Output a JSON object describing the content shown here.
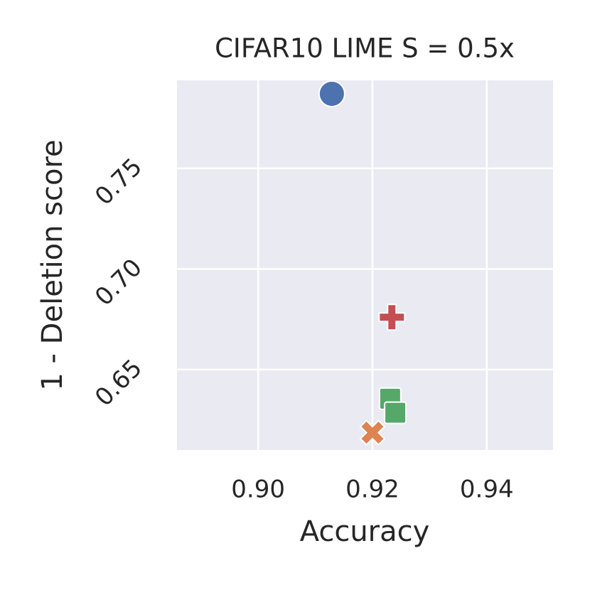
{
  "chart_data": {
    "type": "scatter",
    "title": "CIFAR10 LIME S = 0.5x",
    "xlabel": "Accuracy",
    "ylabel": "1 - Deletion score",
    "xlim": [
      0.8858,
      0.9516
    ],
    "ylim": [
      0.61,
      0.7938
    ],
    "xticks": [
      {
        "value": 0.9,
        "label": "0.90"
      },
      {
        "value": 0.92,
        "label": "0.92"
      },
      {
        "value": 0.94,
        "label": "0.94"
      }
    ],
    "yticks": [
      {
        "value": 0.65,
        "label": "0.65"
      },
      {
        "value": 0.7,
        "label": "0.70"
      },
      0.75
    ],
    "grid": true,
    "series": [
      {
        "color": "#4c72b0",
        "marker": "circle",
        "x": [
          0.9129
        ],
        "values": [
          0.7871
        ]
      },
      {
        "color": "#dd8452",
        "marker": "x",
        "x": [
          0.92
        ],
        "values": [
          0.6186
        ]
      },
      {
        "color": "#55a868",
        "marker": "square",
        "x": [
          0.9231,
          0.924
        ],
        "values": [
          0.6355,
          0.6285
        ]
      },
      {
        "color": "#c44e52",
        "marker": "plus",
        "x": [
          0.9234
        ],
        "values": [
          0.676
        ]
      }
    ]
  }
}
